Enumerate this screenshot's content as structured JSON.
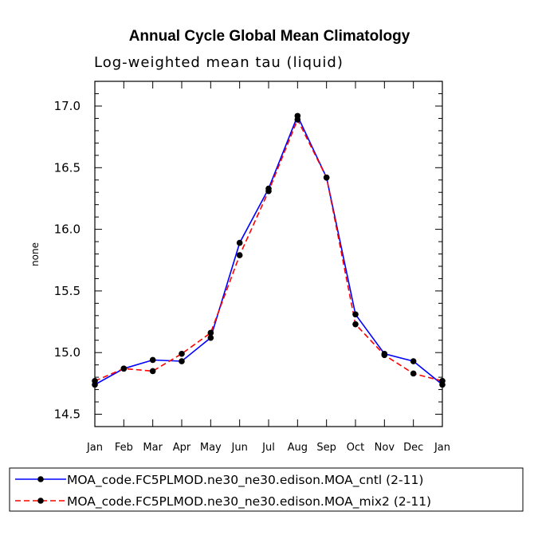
{
  "chart_data": {
    "type": "line",
    "title": "Annual Cycle Global Mean Climatology",
    "subtitle": "Log-weighted mean tau (liquid)",
    "xlabel": "",
    "ylabel": "none",
    "categories": [
      "Jan",
      "Feb",
      "Mar",
      "Apr",
      "May",
      "Jun",
      "Jul",
      "Aug",
      "Sep",
      "Oct",
      "Nov",
      "Dec",
      "Jan"
    ],
    "yticks": [
      "14.5",
      "15.0",
      "15.5",
      "16.0",
      "16.5",
      "17.0"
    ],
    "ylim": [
      14.4,
      17.2
    ],
    "legend_position": "bottom",
    "series": [
      {
        "name": "MOA_code.FC5PLMOD.ne30_ne30.edison.MOA_cntl (2-11)",
        "color": "#0000ff",
        "dash": "solid",
        "marker": "circle",
        "values": [
          14.74,
          14.87,
          14.94,
          14.93,
          15.12,
          15.89,
          16.33,
          16.92,
          16.42,
          15.31,
          14.99,
          14.93,
          14.74
        ]
      },
      {
        "name": "MOA_code.FC5PLMOD.ne30_ne30.edison.MOA_mix2 (2-11)",
        "color": "#ff0000",
        "dash": "dashed",
        "marker": "circle",
        "values": [
          14.77,
          14.87,
          14.85,
          14.99,
          15.16,
          15.79,
          16.31,
          16.89,
          16.42,
          15.23,
          14.98,
          14.83,
          14.77
        ]
      }
    ]
  }
}
